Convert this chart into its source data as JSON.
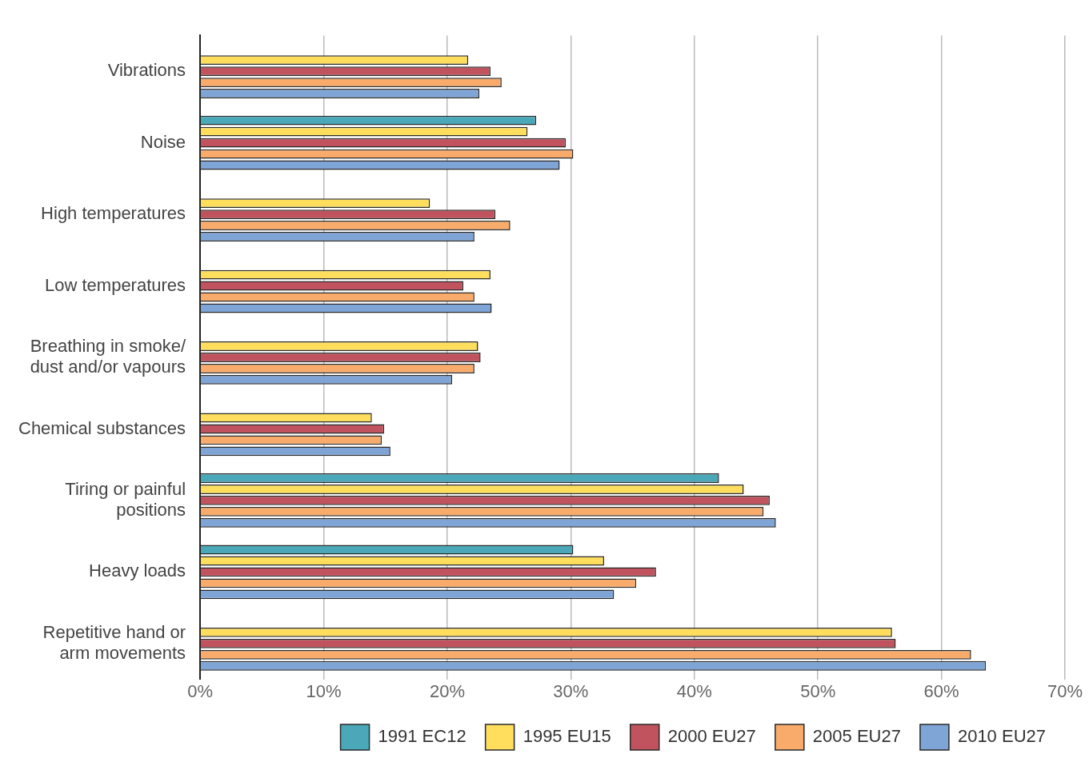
{
  "chart_data": {
    "type": "bar",
    "orientation": "horizontal",
    "categories": [
      "Vibrations",
      "Noise",
      "High temperatures",
      "Low temperatures",
      "Breathing in smoke/ dust and/or vapours",
      "Chemical substances",
      "Tiring or painful positions",
      "Heavy loads",
      "Repetitive hand or arm movements"
    ],
    "series": [
      {
        "name": "1991 EC12",
        "color": "#4aa8b8",
        "values": [
          null,
          27.2,
          null,
          null,
          null,
          null,
          42.0,
          30.2,
          null
        ]
      },
      {
        "name": "1995 EU15",
        "color": "#fede5c",
        "values": [
          21.7,
          26.5,
          18.6,
          23.5,
          22.5,
          13.9,
          44.0,
          32.7,
          56.0
        ]
      },
      {
        "name": "2000 EU27",
        "color": "#c0535e",
        "values": [
          23.5,
          29.6,
          23.9,
          21.3,
          22.7,
          14.9,
          46.1,
          36.9,
          56.3
        ]
      },
      {
        "name": "2005 EU27",
        "color": "#f9ab6b",
        "values": [
          24.4,
          30.2,
          25.1,
          22.2,
          22.2,
          14.7,
          45.6,
          35.3,
          62.4
        ]
      },
      {
        "name": "2010 EU27",
        "color": "#7fa4d6",
        "values": [
          22.6,
          29.1,
          22.2,
          23.6,
          20.4,
          15.4,
          46.6,
          33.5,
          63.6
        ]
      }
    ],
    "xlim": [
      0,
      70
    ],
    "xticks": [
      {
        "value": 0,
        "label": "0%"
      },
      {
        "value": 10,
        "label": "10%"
      },
      {
        "value": 20,
        "label": "20%"
      },
      {
        "value": 30,
        "label": "30%"
      },
      {
        "value": 40,
        "label": "40%"
      },
      {
        "value": 50,
        "label": "50%"
      },
      {
        "value": 60,
        "label": "60%"
      },
      {
        "value": 70,
        "label": "70%"
      }
    ],
    "grid": "x",
    "legend": "bottom right"
  }
}
